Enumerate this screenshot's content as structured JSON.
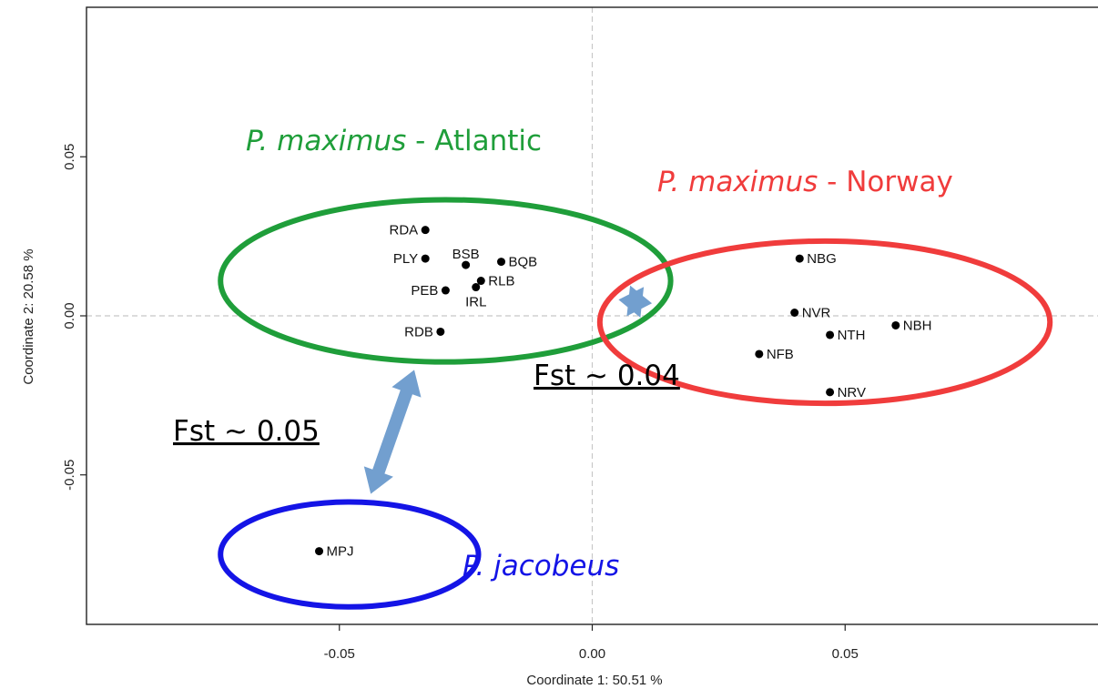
{
  "chart_data": {
    "type": "scatter",
    "title": "",
    "xlabel": "Coordinate 1: 50.51 %",
    "ylabel": "Coordinate 2: 20.58 %",
    "xlim": [
      -0.1,
      0.1
    ],
    "ylim": [
      -0.097,
      0.097
    ],
    "x_ticks": [
      {
        "value": -0.05,
        "label": "-0.05"
      },
      {
        "value": 0.0,
        "label": "0.00"
      },
      {
        "value": 0.05,
        "label": "0.05"
      }
    ],
    "y_ticks": [
      {
        "value": -0.05,
        "label": "-0.05"
      },
      {
        "value": 0.0,
        "label": "0.00"
      },
      {
        "value": 0.05,
        "label": "0.05"
      }
    ],
    "reference_lines": {
      "x": 0,
      "y": 0,
      "style": "dashed"
    },
    "grid": false,
    "points": [
      {
        "label": "RDA",
        "x": -0.033,
        "y": 0.027,
        "label_side": "left"
      },
      {
        "label": "PLY",
        "x": -0.033,
        "y": 0.018,
        "label_side": "left"
      },
      {
        "label": "BSB",
        "x": -0.025,
        "y": 0.016,
        "label_side": "top"
      },
      {
        "label": "BQB",
        "x": -0.018,
        "y": 0.017,
        "label_side": "right"
      },
      {
        "label": "RLB",
        "x": -0.022,
        "y": 0.011,
        "label_side": "right"
      },
      {
        "label": "IRL",
        "x": -0.023,
        "y": 0.009,
        "label_side": "bottom"
      },
      {
        "label": "PEB",
        "x": -0.029,
        "y": 0.008,
        "label_side": "left"
      },
      {
        "label": "RDB",
        "x": -0.03,
        "y": -0.005,
        "label_side": "left"
      },
      {
        "label": "NBG",
        "x": 0.041,
        "y": 0.018,
        "label_side": "right"
      },
      {
        "label": "NVR",
        "x": 0.04,
        "y": 0.001,
        "label_side": "right"
      },
      {
        "label": "NTH",
        "x": 0.047,
        "y": -0.006,
        "label_side": "right"
      },
      {
        "label": "NBH",
        "x": 0.06,
        "y": -0.003,
        "label_side": "right"
      },
      {
        "label": "NFB",
        "x": 0.033,
        "y": -0.012,
        "label_side": "right"
      },
      {
        "label": "NRV",
        "x": 0.047,
        "y": -0.024,
        "label_side": "right"
      },
      {
        "label": "MPJ",
        "x": -0.054,
        "y": -0.074,
        "label_side": "right"
      }
    ],
    "groups": [
      {
        "name": "atlantic",
        "species": "P. maximus",
        "region": "Atlantic",
        "color": "#1f9e3a",
        "center": [
          -0.029,
          0.011
        ],
        "radius": [
          0.0255,
          0.0445
        ]
      },
      {
        "name": "norway",
        "species": "P. maximus",
        "region": "Norway",
        "color": "#f03c3c",
        "center": [
          0.046,
          -0.002
        ],
        "radius": [
          0.0255,
          0.0445
        ]
      },
      {
        "name": "jacobeus",
        "species": "P. jacobeus",
        "region": "",
        "color": "#1414e6",
        "center": [
          -0.048,
          -0.075
        ],
        "radius": [
          0.0165,
          0.0255
        ]
      }
    ],
    "annotations": [
      {
        "text": "Fst ~ 0.04",
        "between": [
          "atlantic",
          "norway"
        ]
      },
      {
        "text": "Fst ~ 0.05",
        "between": [
          "atlantic",
          "jacobeus"
        ]
      }
    ],
    "arrow_color": "#729fcf"
  }
}
